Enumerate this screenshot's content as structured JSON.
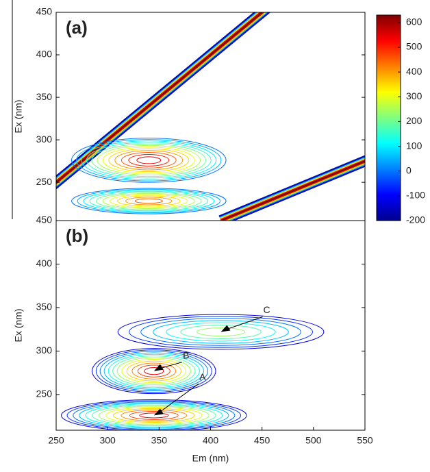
{
  "chart_data": [
    {
      "type": "contour",
      "panel_label": "(a)",
      "y_label": "Ex (nm)",
      "xlim": [
        250,
        550
      ],
      "ylim": [
        205,
        450
      ],
      "yticks": [
        250,
        300,
        350,
        400,
        450
      ],
      "levels": [
        0,
        50,
        100,
        150,
        200,
        250,
        300,
        350,
        400,
        450,
        500,
        550,
        600
      ],
      "peaks": [
        {
          "x": 340,
          "y": 276,
          "z": 600,
          "x_extent": 150,
          "y_extent": 52
        },
        {
          "x": 340,
          "y": 228,
          "z": 500,
          "x_extent": 150,
          "y_extent": 30
        }
      ],
      "colorbar": {
        "clim": [
          -200,
          630
        ],
        "ticks": [
          -200,
          -100,
          0,
          100,
          200,
          300,
          400,
          500,
          600
        ]
      }
    },
    {
      "type": "contour",
      "panel_label": "(b)",
      "y_label": "Ex (nm)",
      "x_label": "Em (nm)",
      "xlim": [
        250,
        550
      ],
      "ylim": [
        209,
        450
      ],
      "xticks": [
        250,
        300,
        350,
        400,
        450,
        500,
        550
      ],
      "yticks": [
        250,
        300,
        350,
        400,
        450
      ],
      "levels": [
        0,
        50,
        100,
        150,
        200,
        250,
        300,
        350,
        400,
        450,
        500,
        550,
        600
      ],
      "peaks": [
        {
          "label": "A",
          "x": 345,
          "y": 226,
          "z": 600,
          "x_extent": 180,
          "y_extent": 36
        },
        {
          "label": "B",
          "x": 345,
          "y": 277,
          "z": 600,
          "x_extent": 120,
          "y_extent": 52
        },
        {
          "label": "C",
          "x": 410,
          "y": 322,
          "z": 350,
          "x_extent": 200,
          "y_extent": 40
        }
      ]
    }
  ]
}
